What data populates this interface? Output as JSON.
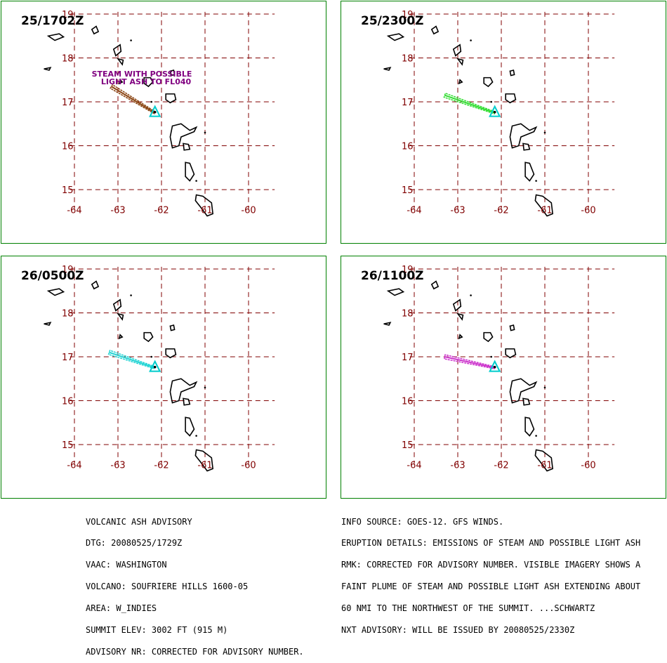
{
  "panels": [
    {
      "time": "25/1702Z",
      "plume_color": "#8B4513",
      "annotation": [
        "STEAM WITH POSSIBLE",
        "LIGHT ASH TO FL040"
      ]
    },
    {
      "time": "25/2300Z",
      "plume_color": "#33dd33",
      "annotation": []
    },
    {
      "time": "26/0500Z",
      "plume_color": "#22d4d4",
      "annotation": []
    },
    {
      "time": "26/1100Z",
      "plume_color": "#cc33cc",
      "annotation": []
    }
  ],
  "map": {
    "lon_ticks": [
      "-64",
      "-63",
      "-62",
      "-61",
      "-60"
    ],
    "lat_ticks": [
      "19",
      "18",
      "17",
      "16",
      "15"
    ],
    "grid_color": "#800000",
    "land_color": "#000000",
    "volcano_marker_color": "#00cccc"
  },
  "advisory_left": [
    "VOLCANIC ASH ADVISORY",
    "DTG: 20080525/1729Z",
    "VAAC: WASHINGTON",
    "VOLCANO: SOUFRIERE HILLS 1600-05",
    "AREA: W_INDIES",
    "SUMMIT ELEV: 3002 FT (915 M)",
    "ADVISORY NR: CORRECTED FOR ADVISORY NUMBER."
  ],
  "advisory_right": [
    "INFO SOURCE: GOES-12. GFS WINDS.",
    "ERUPTION DETAILS: EMISSIONS OF STEAM AND POSSIBLE LIGHT ASH",
    "RMK: CORRECTED FOR ADVISORY NUMBER. VISIBLE IMAGERY SHOWS A",
    "FAINT PLUME OF STEAM AND POSSIBLE LIGHT ASH EXTENDING ABOUT",
    "60 NMI TO THE NORTHWEST OF THE SUMMIT. ...SCHWARTZ",
    "NXT ADVISORY: WILL BE ISSUED BY 20080525/2330Z"
  ]
}
